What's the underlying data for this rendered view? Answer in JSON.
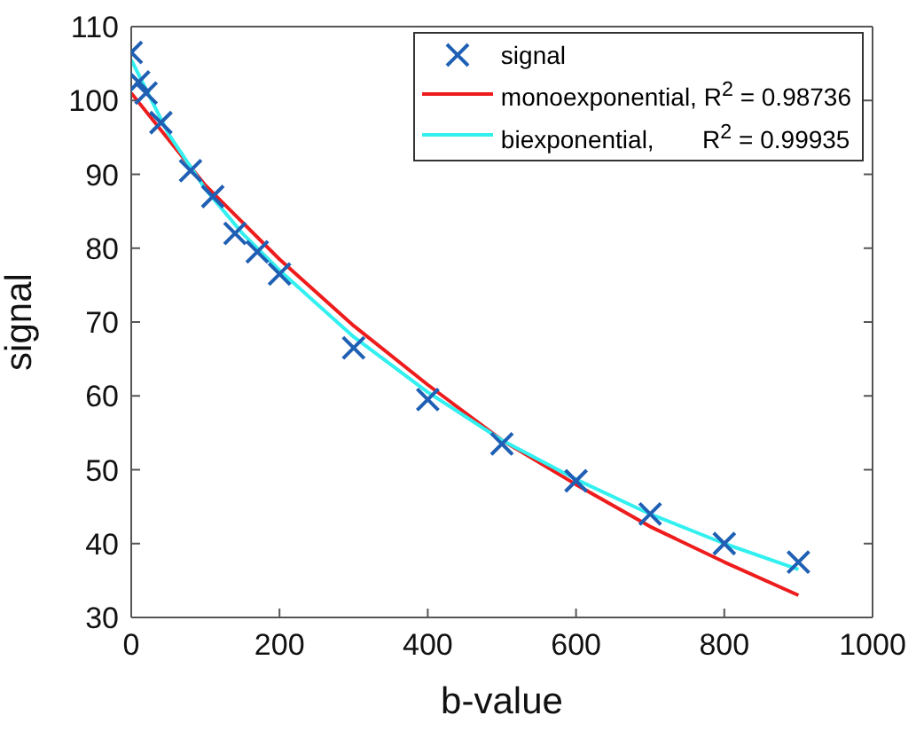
{
  "chart_data": {
    "type": "scatter",
    "xlabel": "b-value",
    "ylabel": "signal",
    "xlim": [
      0,
      1000
    ],
    "xticks": [
      0,
      200,
      400,
      600,
      800,
      1000
    ],
    "ylim": [
      30,
      110
    ],
    "yticks": [
      30,
      40,
      50,
      60,
      70,
      80,
      90,
      100,
      110
    ],
    "legend": "top right",
    "grid": false,
    "series": [
      {
        "name": "signal",
        "marker": "cross",
        "color": "#1f5fb4",
        "x": [
          0,
          10,
          20,
          40,
          80,
          110,
          140,
          170,
          200,
          300,
          400,
          500,
          600,
          700,
          800,
          900
        ],
        "values": [
          106.5,
          102.5,
          101,
          97,
          90.5,
          87,
          82,
          79.5,
          76.5,
          66.5,
          59.5,
          53.5,
          48.5,
          44,
          40,
          37.5
        ]
      },
      {
        "name": "monoexponential, R$^{2}$ = 0.98736",
        "type": "line",
        "marker": "none",
        "line_style": "solid",
        "color": "#ee1c1c",
        "x": [
          0,
          100,
          200,
          300,
          400,
          500,
          600,
          700,
          800,
          900
        ],
        "values": [
          101,
          88.5,
          78.5,
          69.5,
          61.5,
          54,
          48,
          42.3,
          37.5,
          33
        ]
      },
      {
        "name": "biexponential,       R$^{2}$ = 0.99935",
        "type": "line",
        "marker": "none",
        "line_style": "solid",
        "color": "#33f0f0",
        "x": [
          0,
          50,
          100,
          150,
          200,
          300,
          400,
          500,
          600,
          700,
          800,
          900
        ],
        "values": [
          105.5,
          95.5,
          88,
          82,
          77,
          68,
          60.5,
          54,
          48.7,
          44,
          40,
          36.5
        ]
      }
    ]
  }
}
